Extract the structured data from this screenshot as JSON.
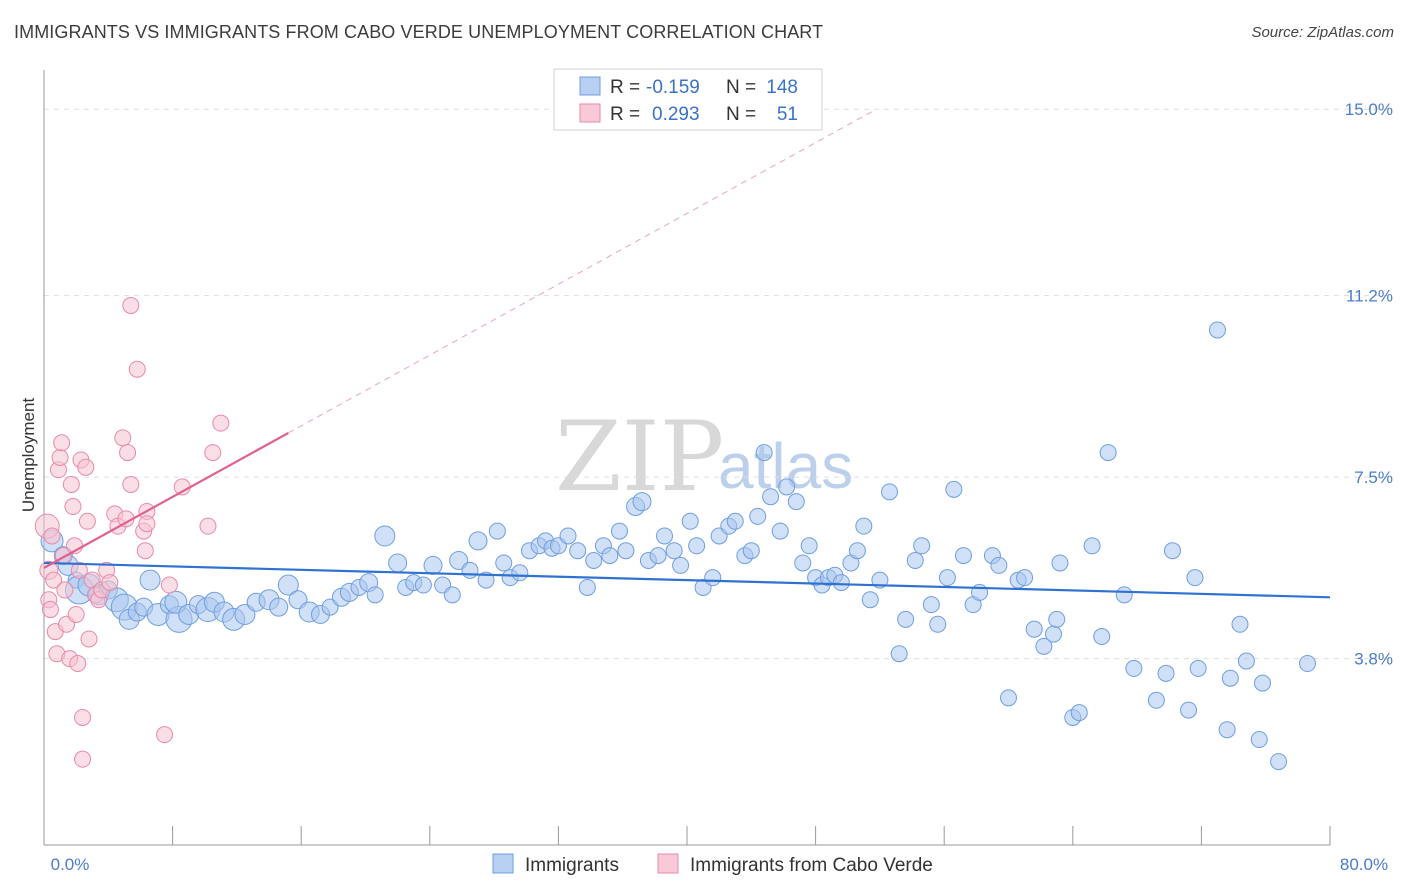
{
  "title": "IMMIGRANTS VS IMMIGRANTS FROM CABO VERDE UNEMPLOYMENT CORRELATION CHART",
  "source": "Source: ZipAtlas.com",
  "watermark": {
    "zip": "ZIP",
    "atlas": "atlas"
  },
  "colors": {
    "blue_fill": "#a9c6ef",
    "blue_stroke": "#6f9ee0",
    "blue_line": "#2f72d1",
    "pink_fill": "#f6c3d2",
    "pink_stroke": "#e98aa8",
    "pink_line": "#e0628e",
    "grid": "#dddddd",
    "axis_text": "#4a7cc9"
  },
  "legend": {
    "rows": [
      {
        "r_label": "R =",
        "r_value": "-0.159",
        "n_label": "N =",
        "n_value": "148",
        "series": "blue"
      },
      {
        "r_label": "R =",
        "r_value": "0.293",
        "n_label": "N =",
        "n_value": "51",
        "series": "pink"
      }
    ]
  },
  "chart_data": {
    "type": "scatter",
    "title": "IMMIGRANTS VS IMMIGRANTS FROM CABO VERDE UNEMPLOYMENT CORRELATION CHART",
    "xlabel": "",
    "ylabel": "Unemployment",
    "xlim": [
      0,
      80
    ],
    "ylim": [
      0,
      15.8
    ],
    "x_ticks": [
      "0.0%",
      "80.0%"
    ],
    "y_ticks": [
      {
        "value": 3.8,
        "label": "3.8%"
      },
      {
        "value": 7.5,
        "label": "7.5%"
      },
      {
        "value": 11.2,
        "label": "11.2%"
      },
      {
        "value": 15.0,
        "label": "15.0%"
      }
    ],
    "grid": true,
    "series": [
      {
        "name": "Immigrants",
        "color": "#a9c6ef",
        "trend": {
          "x": [
            0,
            80
          ],
          "y": [
            5.75,
            5.05
          ],
          "style": "solid"
        },
        "points": [
          [
            0.5,
            6.2,
            22
          ],
          [
            1.2,
            5.9,
            18
          ],
          [
            1.5,
            5.7,
            20
          ],
          [
            2.0,
            5.4,
            16
          ],
          [
            2.2,
            5.2,
            28
          ],
          [
            2.8,
            5.3,
            22
          ],
          [
            3.4,
            5.1,
            20
          ],
          [
            4.0,
            5.2,
            18
          ],
          [
            4.5,
            5.0,
            24
          ],
          [
            5.0,
            4.85,
            26
          ],
          [
            5.3,
            4.6,
            20
          ],
          [
            5.8,
            4.75,
            18
          ],
          [
            6.6,
            5.4,
            20
          ],
          [
            6.2,
            4.85,
            18
          ],
          [
            7.1,
            4.7,
            22
          ],
          [
            7.8,
            4.9,
            18
          ],
          [
            8.4,
            4.6,
            26
          ],
          [
            8.2,
            4.95,
            22
          ],
          [
            9.0,
            4.7,
            20
          ],
          [
            9.6,
            4.9,
            18
          ],
          [
            10.2,
            4.8,
            24
          ],
          [
            10.6,
            4.95,
            20
          ],
          [
            11.2,
            4.75,
            20
          ],
          [
            11.8,
            4.6,
            22
          ],
          [
            12.5,
            4.7,
            20
          ],
          [
            13.2,
            4.95,
            18
          ],
          [
            14.0,
            5.0,
            20
          ],
          [
            14.6,
            4.85,
            18
          ],
          [
            15.2,
            5.3,
            20
          ],
          [
            15.8,
            5.0,
            18
          ],
          [
            16.5,
            4.75,
            20
          ],
          [
            17.2,
            4.7,
            18
          ],
          [
            17.8,
            4.85,
            16
          ],
          [
            18.5,
            5.05,
            18
          ],
          [
            19.0,
            5.15,
            18
          ],
          [
            19.6,
            5.25,
            16
          ],
          [
            20.2,
            5.35,
            18
          ],
          [
            20.6,
            5.1,
            16
          ],
          [
            21.2,
            6.3,
            20
          ],
          [
            22.0,
            5.75,
            18
          ],
          [
            22.5,
            5.25,
            16
          ],
          [
            23.0,
            5.35,
            16
          ],
          [
            23.6,
            5.3,
            16
          ],
          [
            24.2,
            5.7,
            18
          ],
          [
            24.8,
            5.3,
            16
          ],
          [
            25.4,
            5.1,
            16
          ],
          [
            25.8,
            5.8,
            18
          ],
          [
            26.5,
            5.6,
            16
          ],
          [
            27.0,
            6.2,
            18
          ],
          [
            27.5,
            5.4,
            16
          ],
          [
            28.2,
            6.4,
            16
          ],
          [
            28.6,
            5.75,
            16
          ],
          [
            29.0,
            5.45,
            16
          ],
          [
            29.6,
            5.55,
            16
          ],
          [
            30.2,
            6.0,
            16
          ],
          [
            30.8,
            6.1,
            16
          ],
          [
            31.2,
            6.2,
            16
          ],
          [
            31.6,
            6.05,
            16
          ],
          [
            32.0,
            6.1,
            16
          ],
          [
            32.6,
            6.3,
            16
          ],
          [
            33.2,
            6.0,
            16
          ],
          [
            33.8,
            5.25,
            16
          ],
          [
            34.2,
            5.8,
            16
          ],
          [
            34.8,
            6.1,
            16
          ],
          [
            35.2,
            5.9,
            16
          ],
          [
            35.8,
            6.4,
            16
          ],
          [
            36.2,
            6.0,
            16
          ],
          [
            36.8,
            6.9,
            18
          ],
          [
            37.2,
            7.0,
            18
          ],
          [
            37.6,
            5.8,
            16
          ],
          [
            38.2,
            5.9,
            16
          ],
          [
            38.6,
            6.3,
            16
          ],
          [
            39.2,
            6.0,
            16
          ],
          [
            39.6,
            5.7,
            16
          ],
          [
            40.2,
            6.6,
            16
          ],
          [
            40.6,
            6.1,
            16
          ],
          [
            41.0,
            5.25,
            16
          ],
          [
            41.6,
            5.45,
            16
          ],
          [
            42.0,
            6.3,
            16
          ],
          [
            42.6,
            6.5,
            16
          ],
          [
            43.0,
            6.6,
            16
          ],
          [
            43.6,
            5.9,
            16
          ],
          [
            44.0,
            6.0,
            16
          ],
          [
            44.4,
            6.7,
            16
          ],
          [
            44.8,
            8.0,
            16
          ],
          [
            45.2,
            7.1,
            16
          ],
          [
            45.8,
            6.4,
            16
          ],
          [
            46.2,
            7.3,
            16
          ],
          [
            46.8,
            7.0,
            16
          ],
          [
            47.2,
            5.75,
            16
          ],
          [
            47.6,
            6.1,
            16
          ],
          [
            48.0,
            5.45,
            16
          ],
          [
            48.4,
            5.3,
            16
          ],
          [
            48.8,
            5.45,
            16
          ],
          [
            49.2,
            5.5,
            16
          ],
          [
            49.6,
            5.35,
            16
          ],
          [
            50.2,
            5.75,
            16
          ],
          [
            50.6,
            6.0,
            16
          ],
          [
            51.0,
            6.5,
            16
          ],
          [
            51.4,
            5.0,
            16
          ],
          [
            52.0,
            5.4,
            16
          ],
          [
            52.6,
            7.2,
            16
          ],
          [
            53.2,
            3.9,
            16
          ],
          [
            53.6,
            4.6,
            16
          ],
          [
            54.2,
            5.8,
            16
          ],
          [
            54.6,
            6.1,
            16
          ],
          [
            55.2,
            4.9,
            16
          ],
          [
            55.6,
            4.5,
            16
          ],
          [
            56.2,
            5.45,
            16
          ],
          [
            56.6,
            7.25,
            16
          ],
          [
            57.2,
            5.9,
            16
          ],
          [
            57.8,
            4.9,
            16
          ],
          [
            58.2,
            5.15,
            16
          ],
          [
            59.0,
            5.9,
            16
          ],
          [
            59.4,
            5.7,
            16
          ],
          [
            60.0,
            3.0,
            16
          ],
          [
            60.6,
            5.4,
            16
          ],
          [
            61.0,
            5.45,
            16
          ],
          [
            61.6,
            4.4,
            16
          ],
          [
            62.2,
            4.05,
            16
          ],
          [
            62.8,
            4.3,
            16
          ],
          [
            63.2,
            5.75,
            16
          ],
          [
            64.0,
            2.6,
            16
          ],
          [
            64.4,
            2.7,
            16
          ],
          [
            65.2,
            6.1,
            16
          ],
          [
            65.8,
            4.25,
            16
          ],
          [
            66.2,
            8.0,
            16
          ],
          [
            67.2,
            5.1,
            16
          ],
          [
            67.8,
            3.6,
            16
          ],
          [
            69.2,
            2.95,
            16
          ],
          [
            69.8,
            3.5,
            16
          ],
          [
            70.2,
            6.0,
            16
          ],
          [
            71.2,
            2.75,
            16
          ],
          [
            71.6,
            5.45,
            16
          ],
          [
            71.8,
            3.6,
            16
          ],
          [
            73.0,
            10.5,
            16
          ],
          [
            73.6,
            2.35,
            16
          ],
          [
            73.8,
            3.4,
            16
          ],
          [
            74.4,
            4.5,
            16
          ],
          [
            74.8,
            3.75,
            16
          ],
          [
            75.6,
            2.15,
            16
          ],
          [
            75.8,
            3.3,
            16
          ],
          [
            76.8,
            1.7,
            16
          ],
          [
            78.6,
            3.7,
            16
          ],
          [
            63.0,
            4.6,
            16
          ]
        ]
      },
      {
        "name": "Immigrants from Cabo Verde",
        "color": "#f6c3d2",
        "trend": {
          "x": [
            0,
            15.2,
            51.5
          ],
          "y": [
            5.65,
            8.4,
            14.95
          ],
          "style": "solid-then-dashed"
        },
        "points": [
          [
            0.2,
            6.5,
            24
          ],
          [
            0.3,
            5.6,
            18
          ],
          [
            0.3,
            5.0,
            16
          ],
          [
            0.4,
            4.8,
            16
          ],
          [
            0.5,
            6.3,
            16
          ],
          [
            0.6,
            5.4,
            16
          ],
          [
            0.7,
            4.35,
            16
          ],
          [
            0.8,
            3.9,
            16
          ],
          [
            0.9,
            7.65,
            16
          ],
          [
            1.0,
            7.9,
            16
          ],
          [
            1.1,
            8.2,
            16
          ],
          [
            1.2,
            5.9,
            16
          ],
          [
            1.3,
            5.2,
            16
          ],
          [
            1.4,
            4.5,
            16
          ],
          [
            1.6,
            3.8,
            16
          ],
          [
            1.7,
            7.35,
            16
          ],
          [
            1.8,
            6.9,
            16
          ],
          [
            1.9,
            6.1,
            16
          ],
          [
            2.0,
            4.7,
            16
          ],
          [
            2.1,
            3.7,
            16
          ],
          [
            2.2,
            5.6,
            16
          ],
          [
            2.3,
            7.85,
            16
          ],
          [
            2.4,
            2.6,
            16
          ],
          [
            2.4,
            1.75,
            16
          ],
          [
            2.6,
            7.7,
            16
          ],
          [
            2.7,
            6.6,
            16
          ],
          [
            2.8,
            4.2,
            16
          ],
          [
            3.0,
            5.4,
            16
          ],
          [
            3.2,
            5.1,
            16
          ],
          [
            3.4,
            5.0,
            16
          ],
          [
            3.6,
            5.2,
            16
          ],
          [
            3.9,
            5.6,
            16
          ],
          [
            4.1,
            5.35,
            16
          ],
          [
            4.4,
            6.75,
            16
          ],
          [
            4.6,
            6.5,
            16
          ],
          [
            4.9,
            8.3,
            16
          ],
          [
            5.1,
            6.65,
            16
          ],
          [
            5.4,
            7.35,
            16
          ],
          [
            5.2,
            8.0,
            16
          ],
          [
            5.4,
            11.0,
            16
          ],
          [
            5.8,
            9.7,
            16
          ],
          [
            6.2,
            6.4,
            16
          ],
          [
            6.3,
            6.0,
            16
          ],
          [
            6.4,
            6.8,
            16
          ],
          [
            6.4,
            6.55,
            16
          ],
          [
            7.5,
            2.25,
            16
          ],
          [
            7.8,
            5.3,
            16
          ],
          [
            8.6,
            7.3,
            16
          ],
          [
            10.2,
            6.5,
            16
          ],
          [
            10.5,
            8.0,
            16
          ],
          [
            11.0,
            8.6,
            16
          ]
        ]
      }
    ]
  },
  "bottom_legend": [
    {
      "label": "Immigrants",
      "series": "blue"
    },
    {
      "label": "Immigrants from Cabo Verde",
      "series": "pink"
    }
  ]
}
